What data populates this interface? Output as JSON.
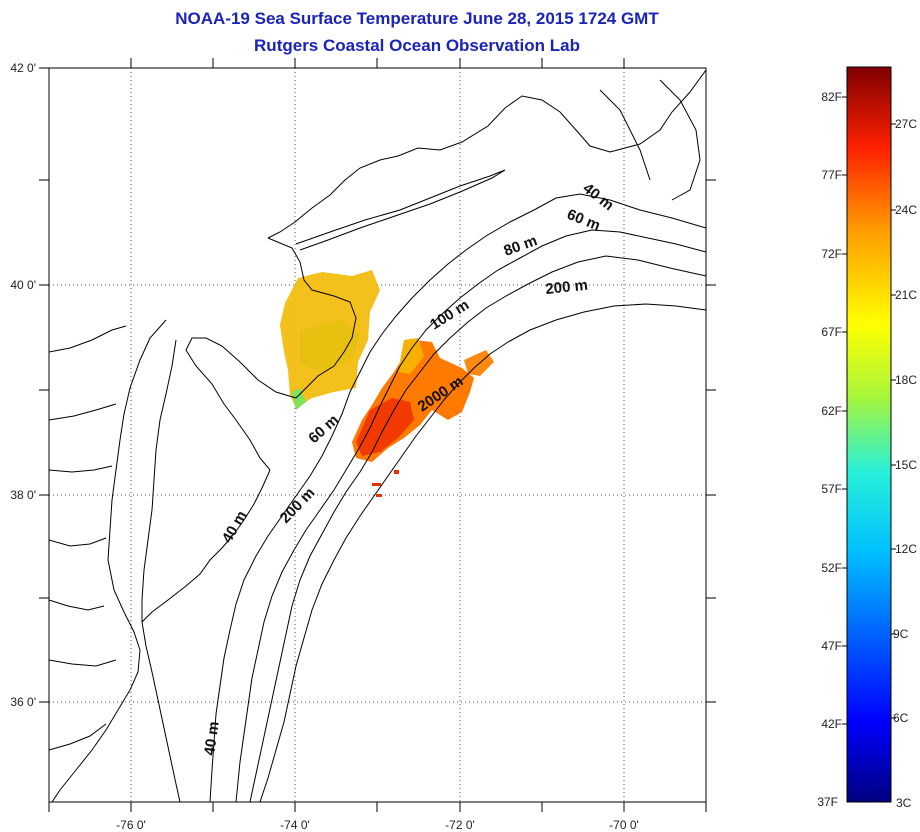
{
  "title": "NOAA-19 Sea Surface Temperature June 28, 2015 1724 GMT",
  "subtitle": "Rutgers Coastal Ocean Observation Lab",
  "map": {
    "lat_ticks": [
      "42 0'",
      "40 0'",
      "38 0'",
      "36 0'"
    ],
    "lon_ticks": [
      "-76 0'",
      "-74 0'",
      "-72 0'",
      "-70 0'"
    ],
    "depth_contours": [
      {
        "label": "40 m"
      },
      {
        "label": "60 m"
      },
      {
        "label": "80 m"
      },
      {
        "label": "200 m"
      },
      {
        "label": "100 m"
      },
      {
        "label": "2000 m"
      },
      {
        "label": "60 m"
      },
      {
        "label": "200 m"
      },
      {
        "label": "40 m"
      },
      {
        "label": "40 m"
      }
    ],
    "grid": "dotted",
    "colors": {
      "land_outline": "#000000",
      "grid": "#555555",
      "title": "#1a24b8"
    }
  },
  "colorbar": {
    "fahrenheit_labels": [
      "82F",
      "77F",
      "72F",
      "67F",
      "62F",
      "57F",
      "52F",
      "47F",
      "42F",
      "37F"
    ],
    "celsius_labels": [
      "27C",
      "24C",
      "21C",
      "18C",
      "15C",
      "12C",
      "9C",
      "6C",
      "3C"
    ],
    "range_c": [
      3,
      28.5
    ],
    "colormap": "jet"
  }
}
